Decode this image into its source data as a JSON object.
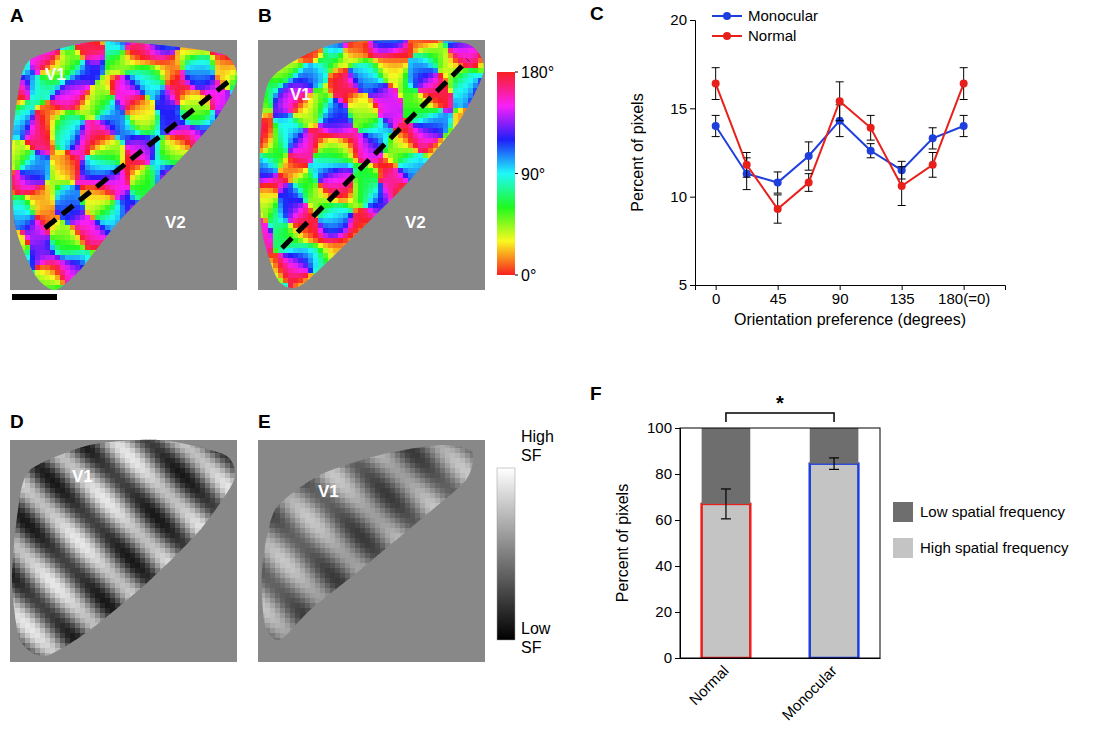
{
  "maps": [
    {
      "panel": "A",
      "labels": [
        "V1",
        "V2"
      ]
    },
    {
      "panel": "B",
      "labels": [
        "V1",
        "V2"
      ]
    },
    {
      "panel": "D",
      "labels": [
        "V1"
      ]
    },
    {
      "panel": "E",
      "labels": [
        "V1"
      ]
    }
  ],
  "orientation_colorbar": {
    "range": [
      0,
      180
    ],
    "ticks": [
      {
        "value": 0,
        "label": "0°"
      },
      {
        "value": 90,
        "label": "90°"
      },
      {
        "value": 180,
        "label": "180°"
      }
    ]
  },
  "sf_colorbar": {
    "top": "High SF",
    "bottom": "Low SF"
  },
  "chart_data": [
    {
      "panel": "C",
      "type": "line",
      "marker": "circle",
      "x": [
        0,
        22.5,
        45,
        67.5,
        90,
        112.5,
        135,
        157.5,
        180
      ],
      "xlim": [
        -15,
        210
      ],
      "xticks": [
        0,
        45,
        90,
        135,
        {
          "value": 180,
          "label": "180(=0)"
        }
      ],
      "ylim": [
        5,
        20
      ],
      "yticks": [
        5,
        10,
        15,
        20
      ],
      "x_label": "Orientation preference (degrees)",
      "y_label": "Percent of pixels",
      "legend": "top",
      "series": [
        {
          "name": "Monocular",
          "color": "#1f3fdc",
          "values": [
            14.0,
            11.3,
            10.8,
            12.3,
            14.3,
            12.6,
            11.5,
            13.3,
            14.0
          ],
          "errors": [
            0.6,
            0.9,
            0.6,
            0.8,
            0.9,
            0.4,
            0.5,
            0.6,
            0.6
          ]
        },
        {
          "name": "Normal",
          "color": "#e8201c",
          "values": [
            16.4,
            11.8,
            9.3,
            10.8,
            15.4,
            13.9,
            10.6,
            11.8,
            16.4
          ],
          "errors": [
            0.9,
            0.7,
            0.8,
            0.5,
            1.1,
            0.7,
            1.1,
            0.7,
            0.9
          ]
        }
      ]
    },
    {
      "panel": "F",
      "type": "bar",
      "stacked": true,
      "categories": [
        "Normal",
        "Monocular"
      ],
      "colors": [
        "#e8201c",
        "#1f3fdc"
      ],
      "ylim": [
        0,
        100
      ],
      "yticks": [
        0,
        20,
        40,
        60,
        80,
        100
      ],
      "y_label": "Percent of pixels",
      "legend": "right",
      "annotation": "*",
      "series": [
        {
          "name": "High spatial frequency",
          "color": "#c4c4c4",
          "values": [
            67,
            84.5
          ],
          "errors": [
            6.5,
            2.5
          ]
        },
        {
          "name": "Low spatial frequency",
          "color": "#6e6e6e",
          "values": [
            33,
            15.5
          ]
        }
      ]
    }
  ]
}
